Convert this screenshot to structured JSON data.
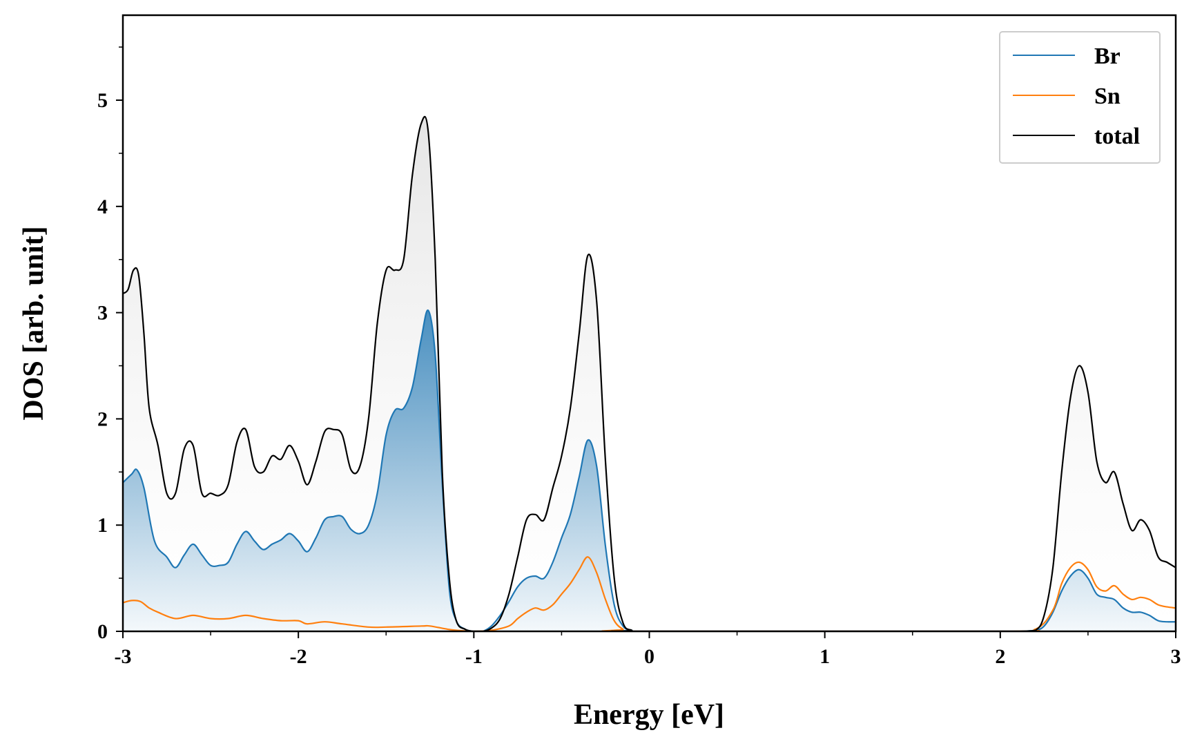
{
  "chart_data": {
    "type": "line",
    "title": "",
    "xlabel": "Energy [eV]",
    "ylabel": "DOS [arb. unit]",
    "xlim": [
      -3,
      3
    ],
    "ylim": [
      0,
      5.8
    ],
    "xticks": [
      -3,
      -2,
      -1,
      0,
      1,
      2,
      3
    ],
    "xtick_labels": [
      "-3",
      "-2",
      "-1",
      "0",
      "1",
      "2",
      "3"
    ],
    "yticks": [
      0,
      1,
      2,
      3,
      4,
      5
    ],
    "ytick_labels": [
      "0",
      "1",
      "2",
      "3",
      "4",
      "5"
    ],
    "grid": false,
    "legend_position": "top-right",
    "series": [
      {
        "name": "Br",
        "color": "#1f77b4",
        "filled": true,
        "x": [
          -3.0,
          -2.95,
          -2.92,
          -2.88,
          -2.82,
          -2.75,
          -2.7,
          -2.65,
          -2.6,
          -2.55,
          -2.5,
          -2.45,
          -2.4,
          -2.35,
          -2.3,
          -2.25,
          -2.2,
          -2.15,
          -2.1,
          -2.05,
          -2.0,
          -1.95,
          -1.9,
          -1.85,
          -1.8,
          -1.75,
          -1.7,
          -1.65,
          -1.6,
          -1.55,
          -1.5,
          -1.45,
          -1.4,
          -1.35,
          -1.3,
          -1.26,
          -1.22,
          -1.18,
          -1.14,
          -1.1,
          -1.05,
          -1.0,
          -0.95,
          -0.9,
          -0.85,
          -0.8,
          -0.75,
          -0.7,
          -0.65,
          -0.6,
          -0.55,
          -0.5,
          -0.45,
          -0.4,
          -0.35,
          -0.3,
          -0.25,
          -0.2,
          -0.15,
          -0.1,
          -0.05,
          2.0,
          2.1,
          2.2,
          2.25,
          2.3,
          2.35,
          2.4,
          2.45,
          2.5,
          2.55,
          2.6,
          2.65,
          2.7,
          2.75,
          2.8,
          2.85,
          2.9,
          2.95,
          3.0
        ],
        "y": [
          1.4,
          1.48,
          1.52,
          1.35,
          0.85,
          0.7,
          0.6,
          0.72,
          0.82,
          0.72,
          0.62,
          0.62,
          0.65,
          0.82,
          0.94,
          0.85,
          0.77,
          0.82,
          0.86,
          0.92,
          0.85,
          0.75,
          0.88,
          1.05,
          1.08,
          1.08,
          0.96,
          0.92,
          1.0,
          1.3,
          1.85,
          2.08,
          2.1,
          2.3,
          2.75,
          3.02,
          2.6,
          1.4,
          0.4,
          0.1,
          0.02,
          0.0,
          0.0,
          0.05,
          0.15,
          0.28,
          0.42,
          0.5,
          0.52,
          0.5,
          0.65,
          0.88,
          1.1,
          1.45,
          1.8,
          1.55,
          0.8,
          0.25,
          0.05,
          0.01,
          0.0,
          0.0,
          0.0,
          0.01,
          0.05,
          0.18,
          0.38,
          0.52,
          0.58,
          0.5,
          0.35,
          0.32,
          0.3,
          0.22,
          0.18,
          0.18,
          0.15,
          0.1,
          0.09,
          0.09
        ]
      },
      {
        "name": "Sn",
        "color": "#ff7f0e",
        "filled": false,
        "x": [
          -3.0,
          -2.95,
          -2.9,
          -2.85,
          -2.8,
          -2.7,
          -2.6,
          -2.5,
          -2.4,
          -2.3,
          -2.2,
          -2.1,
          -2.0,
          -1.95,
          -1.85,
          -1.75,
          -1.6,
          -1.5,
          -1.3,
          -1.25,
          -1.15,
          -1.1,
          -1.0,
          -0.9,
          -0.8,
          -0.75,
          -0.7,
          -0.65,
          -0.6,
          -0.55,
          -0.5,
          -0.45,
          -0.4,
          -0.35,
          -0.3,
          -0.25,
          -0.2,
          -0.15,
          -0.1,
          2.0,
          2.2,
          2.3,
          2.35,
          2.4,
          2.45,
          2.5,
          2.55,
          2.6,
          2.65,
          2.7,
          2.75,
          2.8,
          2.85,
          2.9,
          2.95,
          3.0
        ],
        "y": [
          0.27,
          0.29,
          0.28,
          0.22,
          0.18,
          0.12,
          0.15,
          0.12,
          0.12,
          0.15,
          0.12,
          0.1,
          0.1,
          0.07,
          0.09,
          0.07,
          0.04,
          0.04,
          0.05,
          0.05,
          0.02,
          0.01,
          0.0,
          0.01,
          0.05,
          0.12,
          0.18,
          0.22,
          0.2,
          0.25,
          0.35,
          0.45,
          0.58,
          0.7,
          0.55,
          0.3,
          0.1,
          0.02,
          0.0,
          0.0,
          0.02,
          0.2,
          0.45,
          0.6,
          0.65,
          0.58,
          0.42,
          0.38,
          0.43,
          0.35,
          0.3,
          0.32,
          0.3,
          0.25,
          0.23,
          0.22
        ]
      },
      {
        "name": "total",
        "color": "#000000",
        "filled": true,
        "x": [
          -3.0,
          -2.97,
          -2.94,
          -2.91,
          -2.88,
          -2.85,
          -2.8,
          -2.75,
          -2.7,
          -2.65,
          -2.6,
          -2.55,
          -2.5,
          -2.45,
          -2.4,
          -2.35,
          -2.3,
          -2.25,
          -2.2,
          -2.15,
          -2.1,
          -2.05,
          -2.0,
          -1.95,
          -1.9,
          -1.85,
          -1.8,
          -1.75,
          -1.7,
          -1.65,
          -1.6,
          -1.55,
          -1.5,
          -1.45,
          -1.4,
          -1.35,
          -1.3,
          -1.26,
          -1.22,
          -1.18,
          -1.14,
          -1.1,
          -1.05,
          -1.0,
          -0.95,
          -0.9,
          -0.85,
          -0.8,
          -0.75,
          -0.7,
          -0.65,
          -0.6,
          -0.55,
          -0.5,
          -0.45,
          -0.4,
          -0.35,
          -0.3,
          -0.25,
          -0.2,
          -0.15,
          -0.1,
          -0.05,
          2.0,
          2.1,
          2.2,
          2.25,
          2.3,
          2.35,
          2.4,
          2.45,
          2.5,
          2.55,
          2.6,
          2.65,
          2.7,
          2.75,
          2.8,
          2.85,
          2.9,
          2.95,
          3.0
        ],
        "y": [
          3.18,
          3.22,
          3.4,
          3.35,
          2.8,
          2.1,
          1.75,
          1.3,
          1.3,
          1.72,
          1.75,
          1.3,
          1.3,
          1.28,
          1.38,
          1.78,
          1.9,
          1.55,
          1.5,
          1.65,
          1.62,
          1.75,
          1.6,
          1.38,
          1.6,
          1.88,
          1.9,
          1.85,
          1.52,
          1.55,
          2.0,
          2.9,
          3.4,
          3.4,
          3.5,
          4.3,
          4.78,
          4.7,
          3.5,
          1.5,
          0.5,
          0.1,
          0.02,
          0.0,
          0.0,
          0.03,
          0.12,
          0.35,
          0.7,
          1.05,
          1.1,
          1.05,
          1.35,
          1.65,
          2.1,
          2.8,
          3.54,
          3.1,
          1.6,
          0.5,
          0.08,
          0.01,
          0.0,
          0.0,
          0.0,
          0.01,
          0.15,
          0.6,
          1.5,
          2.2,
          2.5,
          2.25,
          1.6,
          1.4,
          1.5,
          1.2,
          0.95,
          1.05,
          0.95,
          0.7,
          0.65,
          0.6
        ]
      }
    ]
  }
}
